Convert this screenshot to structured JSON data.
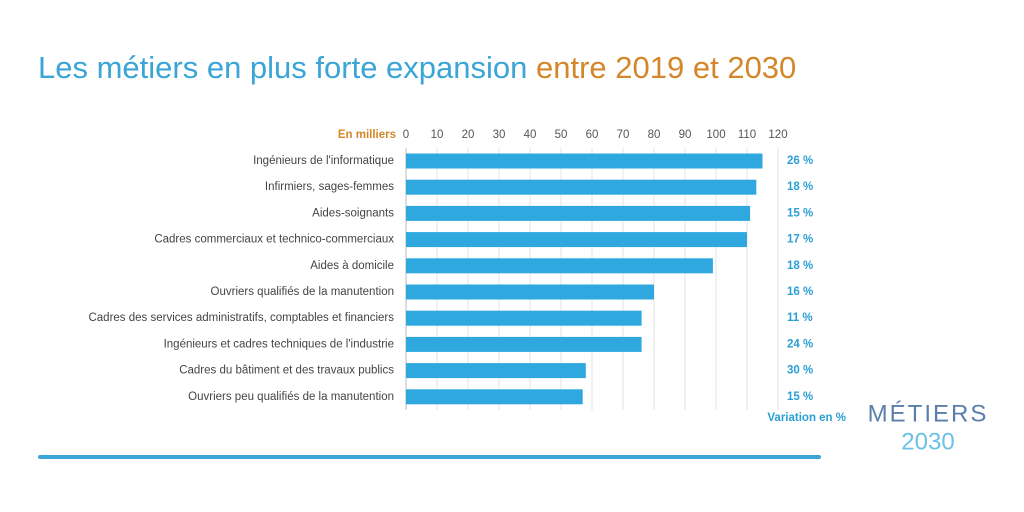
{
  "chart_data": {
    "type": "bar",
    "orientation": "horizontal",
    "title": "Les métiers en plus forte expansion",
    "title_highlight": "entre 2019 et 2030",
    "x_label": "En milliers",
    "categories": [
      "Ingénieurs de l'informatique",
      "Infirmiers, sages-femmes",
      "Aides-soignants",
      "Cadres commerciaux et technico-commerciaux",
      "Aides à domicile",
      "Ouvriers qualifiés de la manutention",
      "Cadres des services administratifs, comptables et financiers",
      "Ingénieurs et cadres techniques de l'industrie",
      "Cadres du bâtiment et des travaux publics",
      "Ouvriers peu qualifiés de la manutention"
    ],
    "values": [
      115,
      113,
      111,
      110,
      99,
      80,
      76,
      76,
      58,
      57
    ],
    "color": "#2ea8df",
    "xlim": [
      0,
      120
    ],
    "xticks": [
      0,
      10,
      20,
      30,
      40,
      50,
      60,
      70,
      80,
      90,
      100,
      110,
      120
    ],
    "grid": true,
    "variation": {
      "label": "Variation en %",
      "values": [
        26,
        18,
        15,
        17,
        18,
        16,
        11,
        24,
        30,
        15
      ],
      "value_labels": [
        "26 %",
        "18 %",
        "15 %",
        "17 %",
        "18 %",
        "16 %",
        "11 %",
        "24 %",
        "30 %",
        "15 %"
      ]
    },
    "logo": {
      "line1": "MÉTIERS",
      "line2": "2030"
    }
  }
}
